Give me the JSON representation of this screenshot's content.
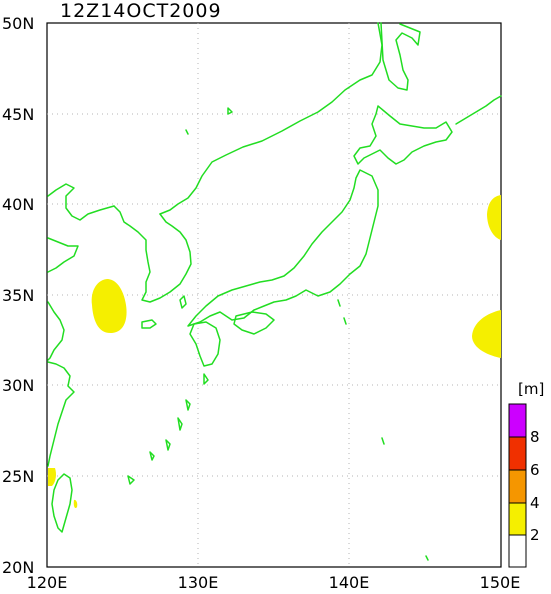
{
  "title": "12Z14OCT2009",
  "lat_ticks": [
    "50N",
    "45N",
    "40N",
    "35N",
    "30N",
    "25N",
    "20N"
  ],
  "lon_ticks": [
    "120E",
    "130E",
    "140E",
    "150E"
  ],
  "colorbar": {
    "unit": "[m]",
    "labels": [
      "8",
      "6",
      "4",
      "2"
    ],
    "colors": [
      "#ffffff",
      "#f5ef00",
      "#f59600",
      "#f03000",
      "#cc00ff"
    ]
  },
  "colors": {
    "coast": "#22dd22",
    "grid": "#b4b4b4",
    "fill": "#f5ef00"
  }
}
